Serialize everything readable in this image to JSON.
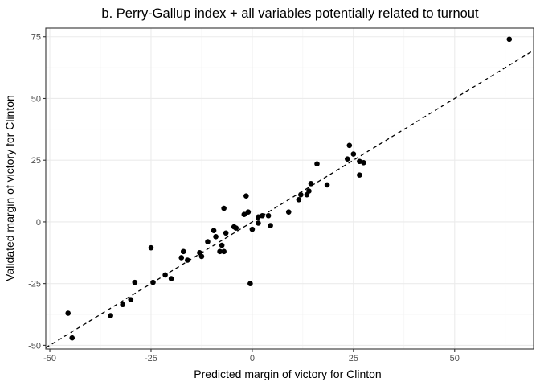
{
  "chart_data": {
    "type": "scatter",
    "title": "b. Perry-Gallup index + all variables potentially related to turnout",
    "xlabel": "Predicted margin of victory for Clinton",
    "ylabel": "Validated margin of victory for Clinton",
    "xlim": [
      -51,
      69.5
    ],
    "ylim": [
      -51.5,
      78.5
    ],
    "x_ticks": [
      -50,
      -25,
      0,
      25,
      50
    ],
    "x_tick_labels": [
      "-50",
      "-25",
      "0",
      "25",
      "50"
    ],
    "y_ticks": [
      -50,
      -25,
      0,
      25,
      50,
      75
    ],
    "y_tick_labels": [
      "-50",
      "-25",
      "0",
      "25",
      "50",
      "75"
    ],
    "grid": true,
    "reference_line": {
      "style": "dashed",
      "slope": 1,
      "intercept": 0,
      "color": "#000000"
    },
    "point_color": "#000000",
    "points": [
      {
        "x": 63.5,
        "y": 74.0
      },
      {
        "x": -45.5,
        "y": -37.0
      },
      {
        "x": -44.5,
        "y": -47.0
      },
      {
        "x": -35.0,
        "y": -38.0
      },
      {
        "x": -32.0,
        "y": -33.5
      },
      {
        "x": -30.0,
        "y": -31.5
      },
      {
        "x": -29.0,
        "y": -24.5
      },
      {
        "x": -25.0,
        "y": -10.5
      },
      {
        "x": -24.5,
        "y": -24.5
      },
      {
        "x": -21.5,
        "y": -21.5
      },
      {
        "x": -20.0,
        "y": -23.0
      },
      {
        "x": -17.5,
        "y": -14.5
      },
      {
        "x": -17.0,
        "y": -12.0
      },
      {
        "x": -16.0,
        "y": -15.5
      },
      {
        "x": -13.0,
        "y": -12.5
      },
      {
        "x": -12.5,
        "y": -14.0
      },
      {
        "x": -11.0,
        "y": -8.0
      },
      {
        "x": -9.5,
        "y": -3.5
      },
      {
        "x": -9.0,
        "y": -6.0
      },
      {
        "x": -8.0,
        "y": -12.0
      },
      {
        "x": -7.5,
        "y": -9.5
      },
      {
        "x": -7.0,
        "y": 5.5
      },
      {
        "x": -7.0,
        "y": -12.0
      },
      {
        "x": -6.5,
        "y": -4.5
      },
      {
        "x": -4.5,
        "y": -2.0
      },
      {
        "x": -4.0,
        "y": -2.5
      },
      {
        "x": -2.0,
        "y": 3.0
      },
      {
        "x": -1.5,
        "y": 10.5
      },
      {
        "x": -1.0,
        "y": 4.0
      },
      {
        "x": -0.5,
        "y": -25.0
      },
      {
        "x": 0.0,
        "y": -3.0
      },
      {
        "x": 1.5,
        "y": 2.0
      },
      {
        "x": 1.5,
        "y": -0.5
      },
      {
        "x": 2.5,
        "y": 2.5
      },
      {
        "x": 4.0,
        "y": 2.5
      },
      {
        "x": 4.5,
        "y": -1.5
      },
      {
        "x": 9.0,
        "y": 4.0
      },
      {
        "x": 11.5,
        "y": 9.0
      },
      {
        "x": 12.0,
        "y": 11.0
      },
      {
        "x": 13.5,
        "y": 11.0
      },
      {
        "x": 14.0,
        "y": 12.5
      },
      {
        "x": 14.5,
        "y": 15.5
      },
      {
        "x": 16.0,
        "y": 23.5
      },
      {
        "x": 18.5,
        "y": 15.0
      },
      {
        "x": 23.5,
        "y": 25.5
      },
      {
        "x": 24.0,
        "y": 31.0
      },
      {
        "x": 25.0,
        "y": 27.5
      },
      {
        "x": 26.5,
        "y": 24.5
      },
      {
        "x": 26.5,
        "y": 19.0
      },
      {
        "x": 27.5,
        "y": 24.0
      }
    ]
  }
}
